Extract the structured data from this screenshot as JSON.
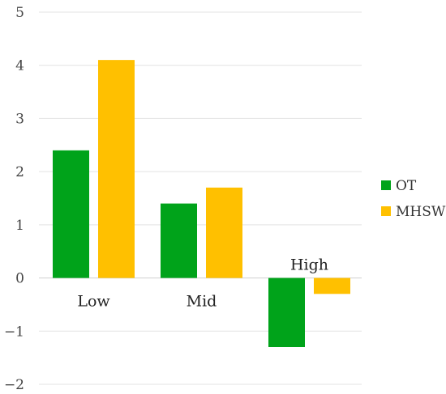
{
  "chart_data": {
    "type": "bar",
    "categories": [
      "Low",
      "Mid",
      "High"
    ],
    "series": [
      {
        "name": "OT",
        "values": [
          2.4,
          1.4,
          -1.3
        ],
        "color": "#00a31a"
      },
      {
        "name": "MHSW",
        "values": [
          4.1,
          1.7,
          -0.3
        ],
        "color": "#ffc000"
      }
    ],
    "ylim": [
      -2,
      5
    ],
    "yticks": [
      {
        "value": 5,
        "label": "5"
      },
      {
        "value": 4,
        "label": "4"
      },
      {
        "value": 3,
        "label": "3"
      },
      {
        "value": 2,
        "label": "2"
      },
      {
        "value": 1,
        "label": "1"
      },
      {
        "value": 0,
        "label": "0"
      },
      {
        "value": -1,
        "label": "−1"
      },
      {
        "value": -2,
        "label": "−2"
      }
    ],
    "grid": true,
    "legend_position": "right"
  }
}
